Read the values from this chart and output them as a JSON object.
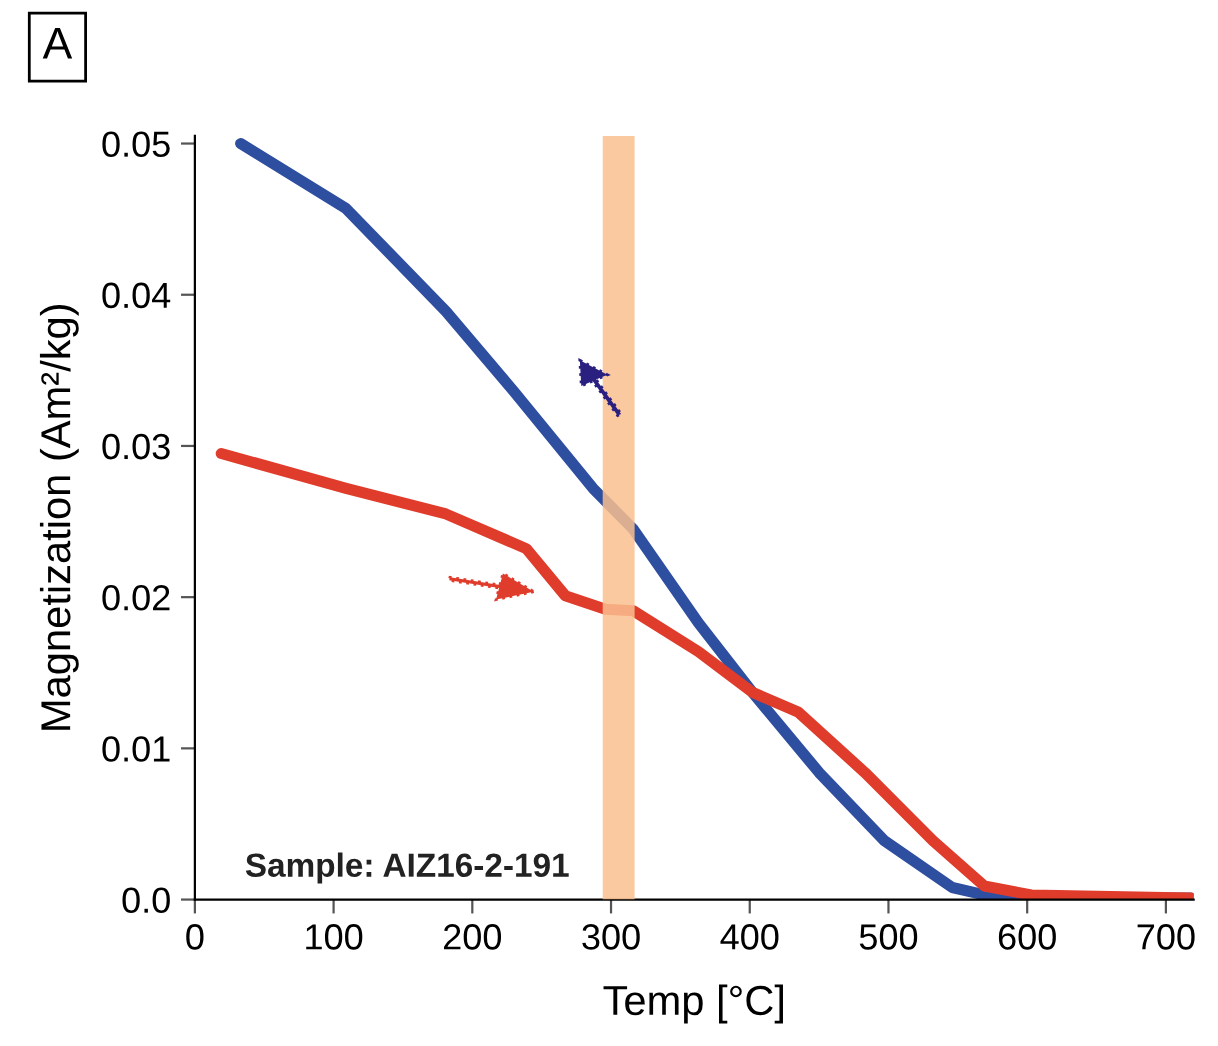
{
  "chart_data": {
    "type": "line",
    "title": "A",
    "xlabel": "Temp [°C]",
    "ylabel": "Magnetization (Am²/kg)",
    "annotations": [
      "Sample: AIZ16-2-191"
    ],
    "series": [
      {
        "color": "#2e4ea0",
        "x": [
          33,
          109,
          181,
          230,
          287,
          316,
          363,
          402,
          450,
          497,
          546,
          579,
          718
        ],
        "values": [
          0.05,
          0.0457,
          0.0389,
          0.0336,
          0.0272,
          0.0245,
          0.0183,
          0.0137,
          0.0084,
          0.0039,
          0.0008,
          0.0001,
          0.0001
        ]
      },
      {
        "color": "#e03c2c",
        "x": [
          19,
          109,
          181,
          239,
          267,
          296,
          316,
          363,
          402,
          435,
          483,
          532,
          569,
          603,
          718
        ],
        "values": [
          0.0295,
          0.0272,
          0.0255,
          0.0232,
          0.0201,
          0.0192,
          0.0191,
          0.0164,
          0.0137,
          0.0124,
          0.0084,
          0.0039,
          0.0009,
          0.0003,
          0.0001
        ]
      }
    ],
    "bands": [
      {
        "axis": "x",
        "from": 294,
        "to": 317,
        "color": "#f9c08f"
      }
    ],
    "xlim": [
      0,
      720
    ],
    "xticks": [
      0,
      100,
      200,
      300,
      400,
      500,
      600,
      700
    ],
    "ylim": [
      0,
      0.0505
    ],
    "yticks": [
      {
        "value": 0,
        "label": "0.0"
      },
      0.01,
      0.02,
      0.03,
      0.04,
      0.05
    ],
    "grid": false,
    "marker": "none",
    "line_style": "solid"
  }
}
